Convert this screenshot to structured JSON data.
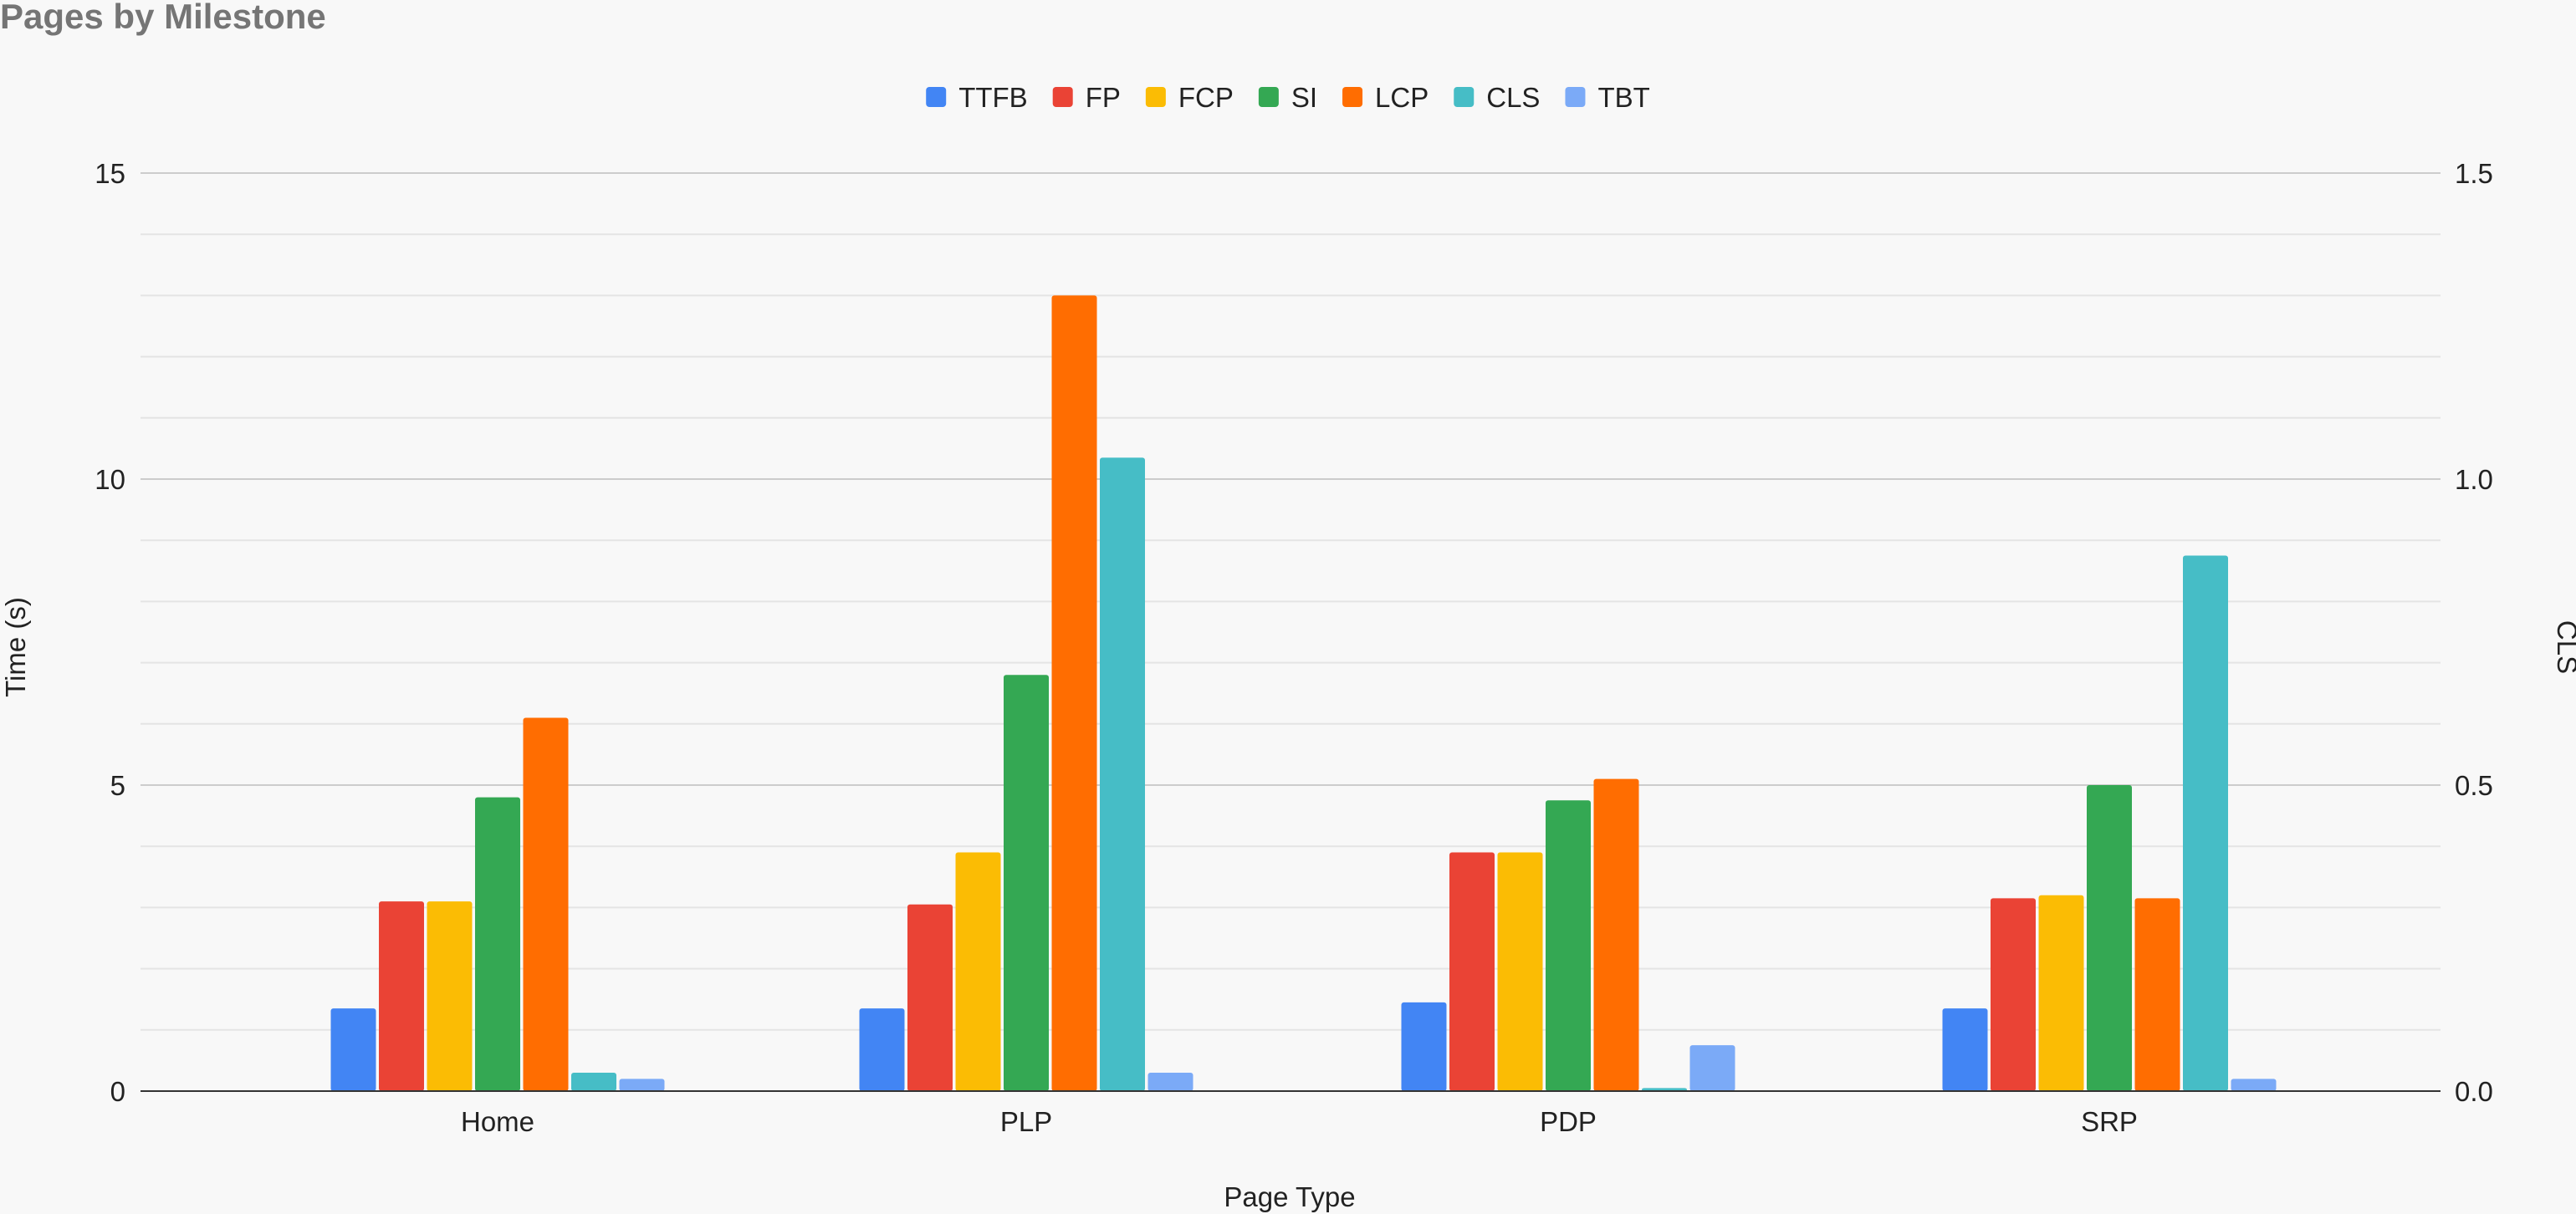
{
  "chart_data": {
    "type": "bar",
    "title": "Pages by Milestone",
    "xlabel": "Page Type",
    "ylabel": "Time (s)",
    "y2label": "CLS",
    "categories": [
      "Home",
      "PLP",
      "PDP",
      "SRP"
    ],
    "ylim": [
      0,
      15
    ],
    "y2lim": [
      0,
      1.5
    ],
    "yticks": [
      "0",
      "5",
      "10",
      "15"
    ],
    "y2ticks": [
      "0.0",
      "0.5",
      "1.0",
      "1.5"
    ],
    "legend_position": "top",
    "grid": true,
    "series": [
      {
        "name": "TTFB",
        "axis": "left",
        "color": "#4285f4",
        "values": [
          1.35,
          1.35,
          1.45,
          1.35
        ]
      },
      {
        "name": "FP",
        "axis": "left",
        "color": "#ea4335",
        "values": [
          3.1,
          3.05,
          3.9,
          3.15
        ]
      },
      {
        "name": "FCP",
        "axis": "left",
        "color": "#fbbc04",
        "values": [
          3.1,
          3.9,
          3.9,
          3.2
        ]
      },
      {
        "name": "SI",
        "axis": "left",
        "color": "#34a853",
        "values": [
          4.8,
          6.8,
          4.75,
          5.0
        ]
      },
      {
        "name": "LCP",
        "axis": "left",
        "color": "#ff6d01",
        "values": [
          6.1,
          13.0,
          5.1,
          3.15
        ]
      },
      {
        "name": "CLS",
        "axis": "right",
        "color": "#46bdc6",
        "values": [
          0.03,
          1.035,
          0.005,
          0.875
        ]
      },
      {
        "name": "TBT",
        "axis": "left",
        "color": "#7baaf7",
        "values": [
          0.2,
          0.3,
          0.75,
          0.2
        ]
      }
    ]
  }
}
